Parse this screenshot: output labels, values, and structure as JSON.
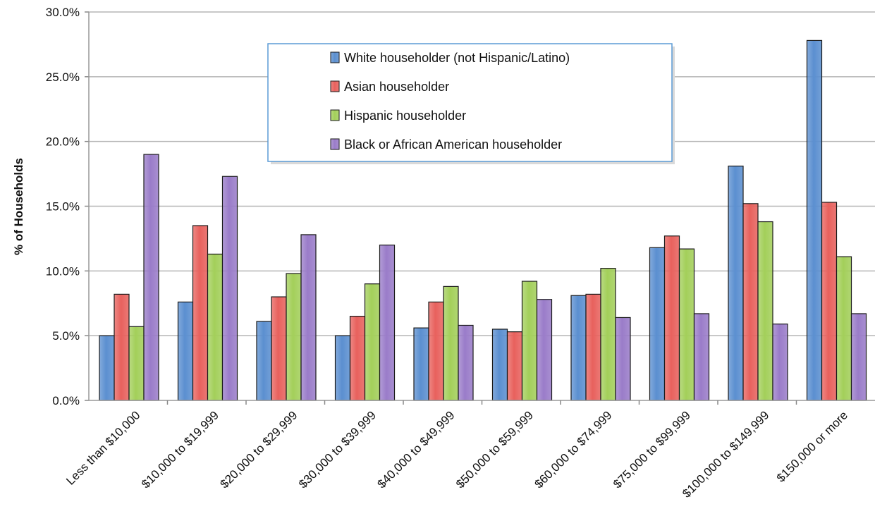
{
  "chart_data": {
    "type": "bar",
    "title": "",
    "xlabel": "",
    "ylabel": "% of Households",
    "ylim": [
      0,
      30
    ],
    "y_ticks": [
      "0.0%",
      "5.0%",
      "10.0%",
      "15.0%",
      "20.0%",
      "25.0%",
      "30.0%"
    ],
    "grid": true,
    "legend_position": "top-center",
    "categories": [
      "Less than $10,000",
      "$10,000 to $19,999",
      "$20,000 to $29,999",
      "$30,000 to $39,999",
      "$40,000 to $49,999",
      "$50,000 to $59,999",
      "$60,000 to $74,999",
      "$75,000 to $99,999",
      "$100,000 to $149,999",
      "$150,000 or more"
    ],
    "series": [
      {
        "name": "White householder (not Hispanic/Latino)",
        "color": "#5b8fd0",
        "values": [
          5.0,
          7.6,
          6.1,
          5.0,
          5.6,
          5.5,
          8.1,
          11.8,
          18.1,
          27.8
        ]
      },
      {
        "name": "Asian householder",
        "color": "#e8615d",
        "values": [
          8.2,
          13.5,
          8.0,
          6.5,
          7.6,
          5.3,
          8.2,
          12.7,
          15.2,
          15.3
        ]
      },
      {
        "name": "Hispanic householder",
        "color": "#a3cf5a",
        "values": [
          5.7,
          11.3,
          9.8,
          9.0,
          8.8,
          9.2,
          10.2,
          11.7,
          13.8,
          11.1
        ]
      },
      {
        "name": "Black or African American householder",
        "color": "#9a7cc9",
        "values": [
          19.0,
          17.3,
          12.8,
          12.0,
          5.8,
          7.8,
          6.4,
          6.7,
          5.9,
          6.7
        ]
      }
    ]
  }
}
